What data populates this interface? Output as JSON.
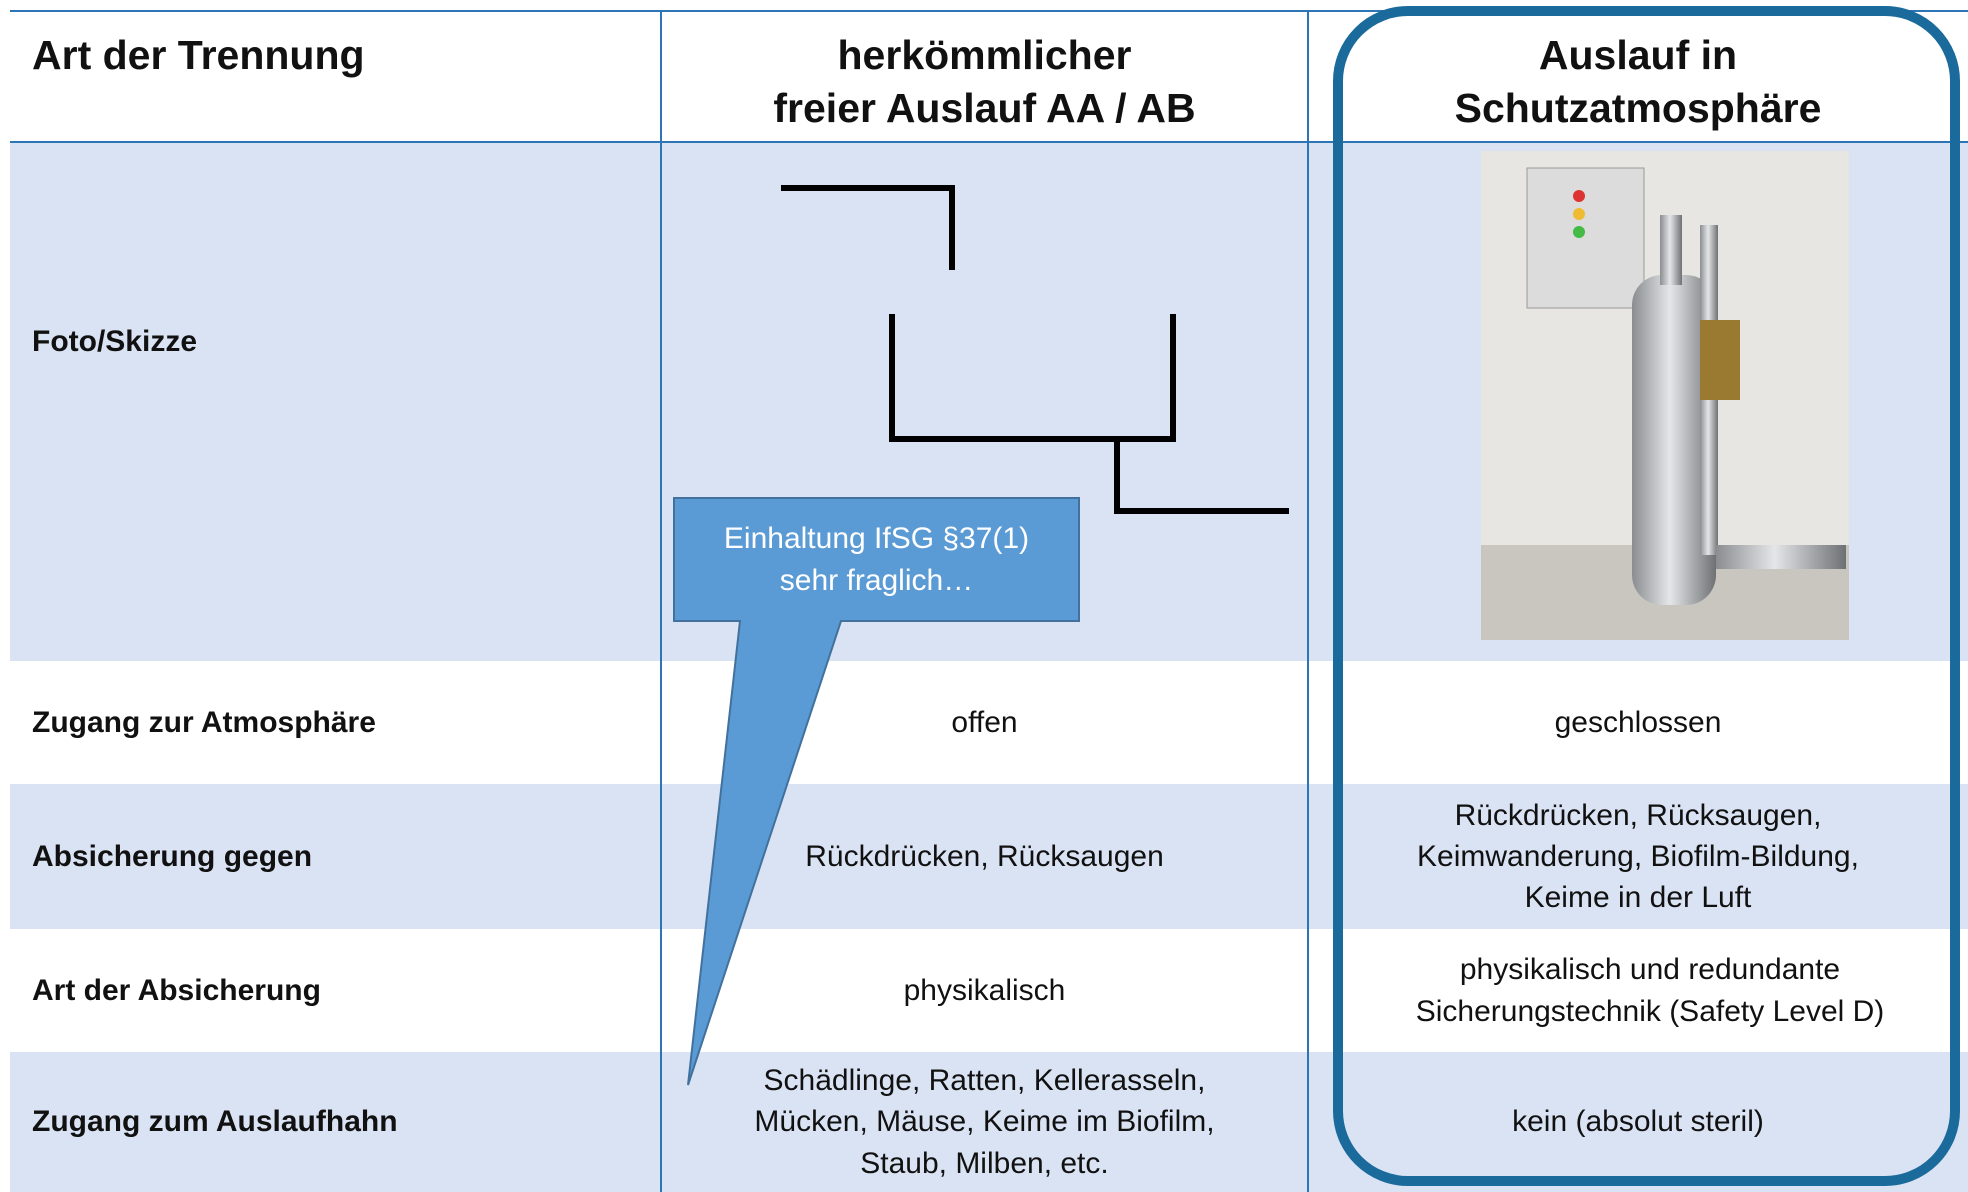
{
  "table": {
    "header": [
      "Art der Trennung",
      "herkömmlicher\nfreier Auslauf AA / AB",
      "Auslauf in\nSchutzatmosphäre"
    ],
    "rows": [
      [
        "Foto/Skizze"
      ],
      [
        "Zugang zur Atmosphäre",
        "offen",
        "geschlossen"
      ],
      [
        "Absicherung gegen",
        "Rückdrücken, Rücksaugen",
        "Rückdrücken, Rücksaugen,\nKeimwanderung, Biofilm-Bildung,\nKeime in der Luft"
      ],
      [
        "Art der Absicherung",
        "physikalisch",
        "physikalisch und redundante\nSicherungstechnik (Safety Level D)"
      ],
      [
        "Zugang zum Auslaufhahn",
        "Schädlinge, Ratten, Kellerasseln,\nMücken, Mäuse, Keime im Biofilm,\nStaub, Milben, etc.",
        "kein (absolut steril)"
      ]
    ]
  },
  "callout": "Einhaltung IfSG §37(1)\nsehr fraglich…"
}
